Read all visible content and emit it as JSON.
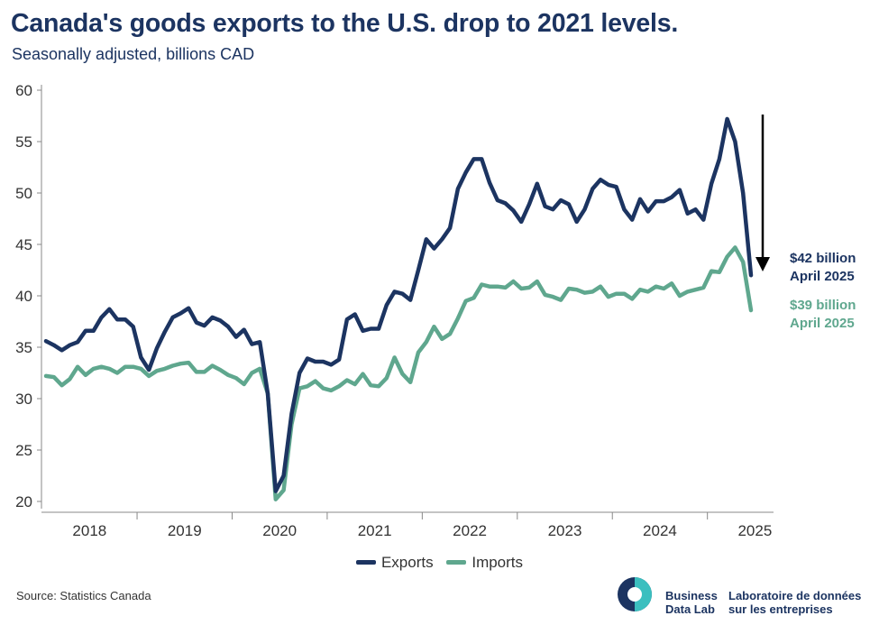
{
  "title": "Canada's goods exports to the U.S. drop to 2021 levels.",
  "subtitle": "Seasonally adjusted, billions CAD",
  "source": "Source: Statistics Canada",
  "logo": {
    "en_line1": "Business",
    "en_line2": "Data Lab",
    "fr_line1": "Laboratoire de données",
    "fr_line2": "sur les entreprises"
  },
  "colors": {
    "exports": "#1c3461",
    "imports": "#5fa78e",
    "arrow": "#000000"
  },
  "annotations": {
    "exports_value": "$42 billion",
    "exports_date": "April 2025",
    "imports_value": "$39 billion",
    "imports_date": "April 2025"
  },
  "chart_data": {
    "type": "line",
    "title": "Canada's goods exports to the U.S. drop to 2021 levels.",
    "subtitle": "Seasonally adjusted, billions CAD",
    "x_start": "2018-01",
    "x_end": "2025-04",
    "x_ticks": [
      "2018",
      "2019",
      "2020",
      "2021",
      "2022",
      "2023",
      "2024",
      "2025"
    ],
    "ylim": [
      20,
      60
    ],
    "y_ticks": [
      20,
      25,
      30,
      35,
      40,
      45,
      50,
      55,
      60
    ],
    "legend": "bottom-center",
    "grid": false,
    "series": [
      {
        "name": "Exports",
        "values": [
          35.6,
          35.2,
          34.7,
          35.2,
          35.5,
          36.6,
          36.6,
          37.9,
          38.7,
          37.7,
          37.7,
          37.0,
          34.0,
          32.8,
          34.9,
          36.5,
          37.9,
          38.3,
          38.8,
          37.4,
          37.1,
          37.9,
          37.6,
          37.0,
          36.0,
          36.7,
          35.3,
          35.5,
          30.5,
          21.0,
          22.5,
          28.5,
          32.5,
          33.9,
          33.6,
          33.6,
          33.3,
          33.8,
          37.7,
          38.2,
          36.6,
          36.8,
          36.8,
          39.1,
          40.4,
          40.2,
          39.6,
          42.5,
          45.5,
          44.6,
          45.5,
          46.6,
          50.4,
          52.0,
          53.3,
          53.3,
          51.0,
          49.3,
          49.0,
          48.3,
          47.2,
          48.9,
          50.9,
          48.7,
          48.4,
          49.3,
          48.9,
          47.2,
          48.4,
          50.4,
          51.3,
          50.8,
          50.6,
          48.4,
          47.4,
          49.4,
          48.2,
          49.2,
          49.2,
          49.6,
          50.3,
          48.0,
          48.4,
          47.4,
          50.9,
          53.3,
          57.2,
          55.0,
          50.0,
          42.0
        ]
      },
      {
        "name": "Imports",
        "values": [
          32.2,
          32.1,
          31.3,
          31.9,
          33.1,
          32.3,
          32.9,
          33.1,
          32.9,
          32.5,
          33.1,
          33.1,
          32.9,
          32.2,
          32.7,
          32.9,
          33.2,
          33.4,
          33.5,
          32.6,
          32.6,
          33.2,
          32.8,
          32.3,
          32.0,
          31.4,
          32.5,
          32.9,
          30.5,
          20.2,
          21.1,
          27.5,
          31.0,
          31.2,
          31.7,
          31.0,
          30.8,
          31.2,
          31.8,
          31.4,
          32.4,
          31.3,
          31.2,
          32.0,
          34.0,
          32.4,
          31.6,
          34.5,
          35.5,
          37.0,
          35.8,
          36.3,
          37.8,
          39.5,
          39.8,
          41.1,
          40.9,
          40.9,
          40.8,
          41.4,
          40.7,
          40.8,
          41.4,
          40.1,
          39.9,
          39.6,
          40.7,
          40.6,
          40.3,
          40.4,
          40.9,
          39.9,
          40.2,
          40.2,
          39.7,
          40.6,
          40.4,
          40.9,
          40.7,
          41.2,
          40.0,
          40.4,
          40.6,
          40.8,
          42.4,
          42.3,
          43.8,
          44.7,
          43.3,
          38.6
        ]
      }
    ]
  }
}
